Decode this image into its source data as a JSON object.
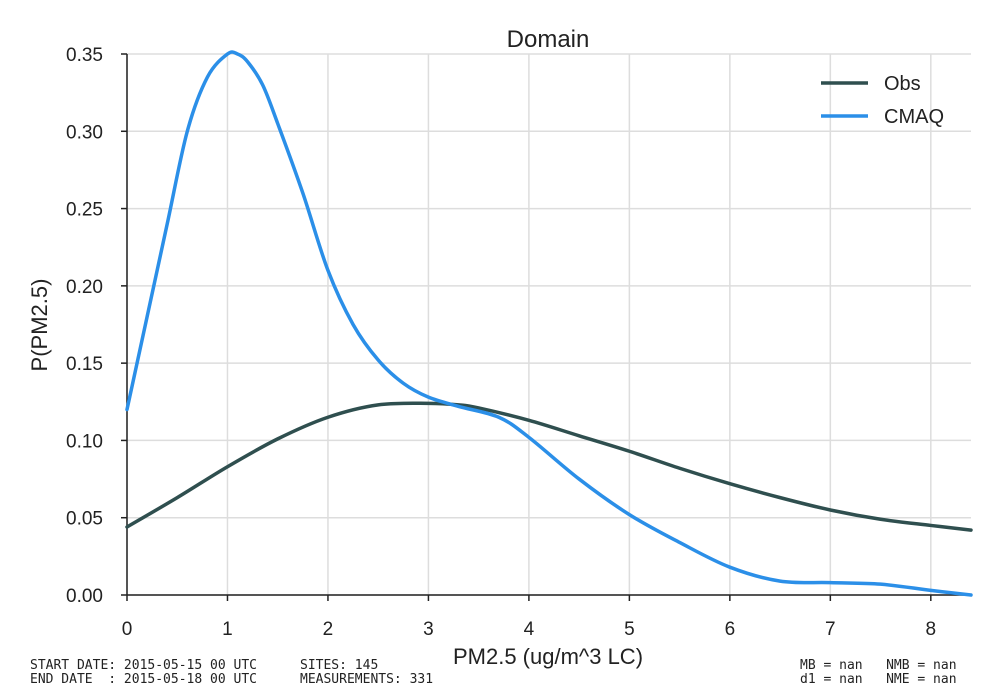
{
  "chart_data": {
    "type": "line",
    "title": "Domain",
    "xlabel": "PM2.5  (ug/m^3 LC)",
    "ylabel": "P(PM2.5)",
    "xlim": [
      0,
      8.4
    ],
    "ylim": [
      0,
      0.35
    ],
    "xticks": [
      0,
      1,
      2,
      3,
      4,
      5,
      6,
      7,
      8
    ],
    "xtick_labels": [
      "0",
      "1",
      "2",
      "3",
      "4",
      "5",
      "6",
      "7",
      "8"
    ],
    "yticks": [
      0,
      0.05,
      0.1,
      0.15,
      0.2,
      0.25,
      0.3,
      0.35
    ],
    "ytick_labels": [
      "0.00",
      "0.05",
      "0.10",
      "0.15",
      "0.20",
      "0.25",
      "0.30",
      "0.35"
    ],
    "grid": true,
    "legend": "top-right",
    "series": [
      {
        "name": "Obs",
        "color": "#2f4f4f",
        "x": [
          0,
          0.5,
          1,
          1.5,
          2,
          2.5,
          3,
          3.3,
          3.5,
          4,
          4.5,
          5,
          5.5,
          6,
          6.5,
          7,
          7.5,
          8,
          8.4
        ],
        "y": [
          0.044,
          0.063,
          0.083,
          0.101,
          0.115,
          0.123,
          0.124,
          0.123,
          0.121,
          0.113,
          0.103,
          0.093,
          0.082,
          0.072,
          0.063,
          0.055,
          0.049,
          0.045,
          0.042
        ]
      },
      {
        "name": "CMAQ",
        "color": "#2b8fe8",
        "x": [
          0,
          0.2,
          0.4,
          0.6,
          0.8,
          1.0,
          1.1,
          1.2,
          1.35,
          1.5,
          1.75,
          2.0,
          2.25,
          2.5,
          2.75,
          3.0,
          3.3,
          3.7,
          4.0,
          4.5,
          5.0,
          5.5,
          6.0,
          6.5,
          7.0,
          7.5,
          8.0,
          8.4
        ],
        "y": [
          0.12,
          0.18,
          0.24,
          0.3,
          0.335,
          0.35,
          0.35,
          0.345,
          0.33,
          0.305,
          0.26,
          0.21,
          0.175,
          0.152,
          0.137,
          0.128,
          0.122,
          0.115,
          0.102,
          0.075,
          0.052,
          0.034,
          0.018,
          0.009,
          0.008,
          0.007,
          0.003,
          0.0
        ]
      }
    ]
  },
  "footer": {
    "left": "START DATE: 2015-05-15 00 UTC\nEND DATE  : 2015-05-18 00 UTC",
    "middle": "SITES: 145\nMEASUREMENTS: 331",
    "right": "MB = nan   NMB = nan\nd1 = nan   NME = nan"
  }
}
